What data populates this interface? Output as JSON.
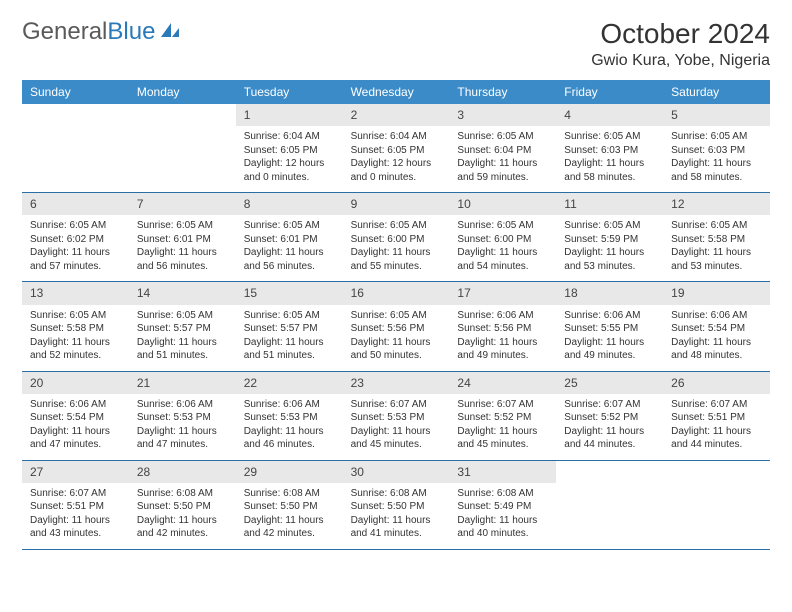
{
  "logo": {
    "text_gray": "General",
    "text_blue": "Blue",
    "icon_color": "#2a7ab9"
  },
  "header": {
    "month_title": "October 2024",
    "location": "Gwio Kura, Yobe, Nigeria"
  },
  "colors": {
    "header_bg": "#3b8bc8",
    "header_text": "#ffffff",
    "daynum_bg": "#e8e8e8",
    "week_border": "#2a6ea5",
    "text": "#333333"
  },
  "day_names": [
    "Sunday",
    "Monday",
    "Tuesday",
    "Wednesday",
    "Thursday",
    "Friday",
    "Saturday"
  ],
  "weeks": [
    [
      null,
      null,
      {
        "n": "1",
        "sunrise": "Sunrise: 6:04 AM",
        "sunset": "Sunset: 6:05 PM",
        "day1": "Daylight: 12 hours",
        "day2": "and 0 minutes."
      },
      {
        "n": "2",
        "sunrise": "Sunrise: 6:04 AM",
        "sunset": "Sunset: 6:05 PM",
        "day1": "Daylight: 12 hours",
        "day2": "and 0 minutes."
      },
      {
        "n": "3",
        "sunrise": "Sunrise: 6:05 AM",
        "sunset": "Sunset: 6:04 PM",
        "day1": "Daylight: 11 hours",
        "day2": "and 59 minutes."
      },
      {
        "n": "4",
        "sunrise": "Sunrise: 6:05 AM",
        "sunset": "Sunset: 6:03 PM",
        "day1": "Daylight: 11 hours",
        "day2": "and 58 minutes."
      },
      {
        "n": "5",
        "sunrise": "Sunrise: 6:05 AM",
        "sunset": "Sunset: 6:03 PM",
        "day1": "Daylight: 11 hours",
        "day2": "and 58 minutes."
      }
    ],
    [
      {
        "n": "6",
        "sunrise": "Sunrise: 6:05 AM",
        "sunset": "Sunset: 6:02 PM",
        "day1": "Daylight: 11 hours",
        "day2": "and 57 minutes."
      },
      {
        "n": "7",
        "sunrise": "Sunrise: 6:05 AM",
        "sunset": "Sunset: 6:01 PM",
        "day1": "Daylight: 11 hours",
        "day2": "and 56 minutes."
      },
      {
        "n": "8",
        "sunrise": "Sunrise: 6:05 AM",
        "sunset": "Sunset: 6:01 PM",
        "day1": "Daylight: 11 hours",
        "day2": "and 56 minutes."
      },
      {
        "n": "9",
        "sunrise": "Sunrise: 6:05 AM",
        "sunset": "Sunset: 6:00 PM",
        "day1": "Daylight: 11 hours",
        "day2": "and 55 minutes."
      },
      {
        "n": "10",
        "sunrise": "Sunrise: 6:05 AM",
        "sunset": "Sunset: 6:00 PM",
        "day1": "Daylight: 11 hours",
        "day2": "and 54 minutes."
      },
      {
        "n": "11",
        "sunrise": "Sunrise: 6:05 AM",
        "sunset": "Sunset: 5:59 PM",
        "day1": "Daylight: 11 hours",
        "day2": "and 53 minutes."
      },
      {
        "n": "12",
        "sunrise": "Sunrise: 6:05 AM",
        "sunset": "Sunset: 5:58 PM",
        "day1": "Daylight: 11 hours",
        "day2": "and 53 minutes."
      }
    ],
    [
      {
        "n": "13",
        "sunrise": "Sunrise: 6:05 AM",
        "sunset": "Sunset: 5:58 PM",
        "day1": "Daylight: 11 hours",
        "day2": "and 52 minutes."
      },
      {
        "n": "14",
        "sunrise": "Sunrise: 6:05 AM",
        "sunset": "Sunset: 5:57 PM",
        "day1": "Daylight: 11 hours",
        "day2": "and 51 minutes."
      },
      {
        "n": "15",
        "sunrise": "Sunrise: 6:05 AM",
        "sunset": "Sunset: 5:57 PM",
        "day1": "Daylight: 11 hours",
        "day2": "and 51 minutes."
      },
      {
        "n": "16",
        "sunrise": "Sunrise: 6:05 AM",
        "sunset": "Sunset: 5:56 PM",
        "day1": "Daylight: 11 hours",
        "day2": "and 50 minutes."
      },
      {
        "n": "17",
        "sunrise": "Sunrise: 6:06 AM",
        "sunset": "Sunset: 5:56 PM",
        "day1": "Daylight: 11 hours",
        "day2": "and 49 minutes."
      },
      {
        "n": "18",
        "sunrise": "Sunrise: 6:06 AM",
        "sunset": "Sunset: 5:55 PM",
        "day1": "Daylight: 11 hours",
        "day2": "and 49 minutes."
      },
      {
        "n": "19",
        "sunrise": "Sunrise: 6:06 AM",
        "sunset": "Sunset: 5:54 PM",
        "day1": "Daylight: 11 hours",
        "day2": "and 48 minutes."
      }
    ],
    [
      {
        "n": "20",
        "sunrise": "Sunrise: 6:06 AM",
        "sunset": "Sunset: 5:54 PM",
        "day1": "Daylight: 11 hours",
        "day2": "and 47 minutes."
      },
      {
        "n": "21",
        "sunrise": "Sunrise: 6:06 AM",
        "sunset": "Sunset: 5:53 PM",
        "day1": "Daylight: 11 hours",
        "day2": "and 47 minutes."
      },
      {
        "n": "22",
        "sunrise": "Sunrise: 6:06 AM",
        "sunset": "Sunset: 5:53 PM",
        "day1": "Daylight: 11 hours",
        "day2": "and 46 minutes."
      },
      {
        "n": "23",
        "sunrise": "Sunrise: 6:07 AM",
        "sunset": "Sunset: 5:53 PM",
        "day1": "Daylight: 11 hours",
        "day2": "and 45 minutes."
      },
      {
        "n": "24",
        "sunrise": "Sunrise: 6:07 AM",
        "sunset": "Sunset: 5:52 PM",
        "day1": "Daylight: 11 hours",
        "day2": "and 45 minutes."
      },
      {
        "n": "25",
        "sunrise": "Sunrise: 6:07 AM",
        "sunset": "Sunset: 5:52 PM",
        "day1": "Daylight: 11 hours",
        "day2": "and 44 minutes."
      },
      {
        "n": "26",
        "sunrise": "Sunrise: 6:07 AM",
        "sunset": "Sunset: 5:51 PM",
        "day1": "Daylight: 11 hours",
        "day2": "and 44 minutes."
      }
    ],
    [
      {
        "n": "27",
        "sunrise": "Sunrise: 6:07 AM",
        "sunset": "Sunset: 5:51 PM",
        "day1": "Daylight: 11 hours",
        "day2": "and 43 minutes."
      },
      {
        "n": "28",
        "sunrise": "Sunrise: 6:08 AM",
        "sunset": "Sunset: 5:50 PM",
        "day1": "Daylight: 11 hours",
        "day2": "and 42 minutes."
      },
      {
        "n": "29",
        "sunrise": "Sunrise: 6:08 AM",
        "sunset": "Sunset: 5:50 PM",
        "day1": "Daylight: 11 hours",
        "day2": "and 42 minutes."
      },
      {
        "n": "30",
        "sunrise": "Sunrise: 6:08 AM",
        "sunset": "Sunset: 5:50 PM",
        "day1": "Daylight: 11 hours",
        "day2": "and 41 minutes."
      },
      {
        "n": "31",
        "sunrise": "Sunrise: 6:08 AM",
        "sunset": "Sunset: 5:49 PM",
        "day1": "Daylight: 11 hours",
        "day2": "and 40 minutes."
      },
      null,
      null
    ]
  ]
}
